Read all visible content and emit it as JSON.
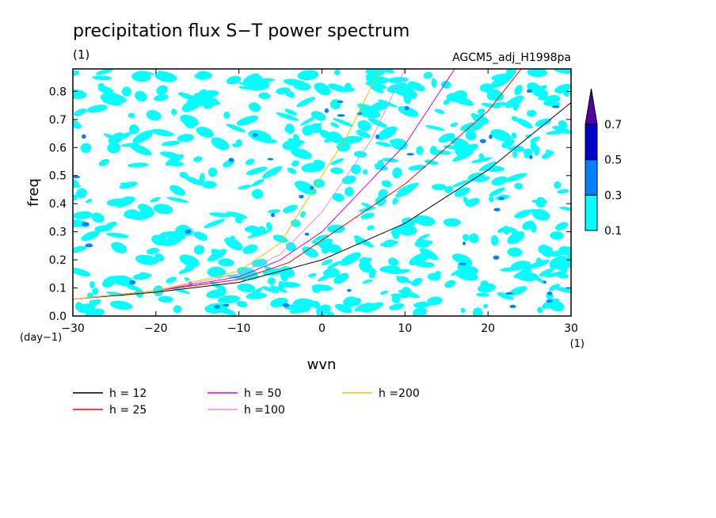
{
  "chart_data": {
    "type": "heatmap",
    "title": "precipitation flux S−T power spectrum",
    "units_label": "(1)",
    "model_label": "AGCM5_adj_H1998pa",
    "xlabel": "wvn",
    "ylabel": "freq",
    "x_units": "(1)",
    "y_units": "(day−1)",
    "xlim": [
      -30,
      30
    ],
    "ylim": [
      0,
      0.88
    ],
    "x_ticks": [
      -30,
      -20,
      -10,
      0,
      10,
      20,
      30
    ],
    "x_tick_labels": [
      "−30",
      "−20",
      "−10",
      "0",
      "10",
      "20",
      "30"
    ],
    "y_ticks": [
      0,
      0.1,
      0.2,
      0.3,
      0.4,
      0.5,
      0.6,
      0.7,
      0.8
    ],
    "y_tick_labels": [
      "0.0",
      "0.1",
      "0.2",
      "0.3",
      "0.4",
      "0.5",
      "0.6",
      "0.7",
      "0.8"
    ],
    "colorbar": {
      "levels": [
        "0.1",
        "0.3",
        "0.5",
        "0.7"
      ],
      "colors": [
        "#00ffff",
        "#0080ff",
        "#0000c8",
        "#5000a0"
      ]
    },
    "dispersion_curves": [
      {
        "name": "h = 12",
        "color": "#000000",
        "points": [
          [
            -30,
            0.06
          ],
          [
            -20,
            0.085
          ],
          [
            -10,
            0.12
          ],
          [
            0,
            0.2
          ],
          [
            10,
            0.33
          ],
          [
            20,
            0.52
          ],
          [
            30,
            0.76
          ]
        ]
      },
      {
        "name": "h = 25",
        "color": "#ff0000",
        "points": [
          [
            -30,
            0.06
          ],
          [
            -20,
            0.09
          ],
          [
            -10,
            0.13
          ],
          [
            -4,
            0.19
          ],
          [
            0,
            0.27
          ],
          [
            10,
            0.47
          ],
          [
            20,
            0.73
          ],
          [
            24,
            0.88
          ]
        ]
      },
      {
        "name": "h = 50",
        "color": "#e000e0",
        "points": [
          [
            -30,
            0.06
          ],
          [
            -20,
            0.09
          ],
          [
            -10,
            0.14
          ],
          [
            -5,
            0.2
          ],
          [
            0,
            0.3
          ],
          [
            10,
            0.61
          ],
          [
            16,
            0.88
          ]
        ]
      },
      {
        "name": "h =100",
        "color": "#e090e0",
        "points": [
          [
            -30,
            0.06
          ],
          [
            -20,
            0.09
          ],
          [
            -10,
            0.15
          ],
          [
            -5,
            0.22
          ],
          [
            0,
            0.37
          ],
          [
            6,
            0.63
          ],
          [
            10,
            0.88
          ]
        ]
      },
      {
        "name": "h =200",
        "color": "#f0c000",
        "points": [
          [
            -30,
            0.06
          ],
          [
            -20,
            0.09
          ],
          [
            -10,
            0.16
          ],
          [
            -5,
            0.26
          ],
          [
            0,
            0.5
          ],
          [
            3,
            0.64
          ],
          [
            7,
            0.88
          ]
        ]
      }
    ]
  }
}
